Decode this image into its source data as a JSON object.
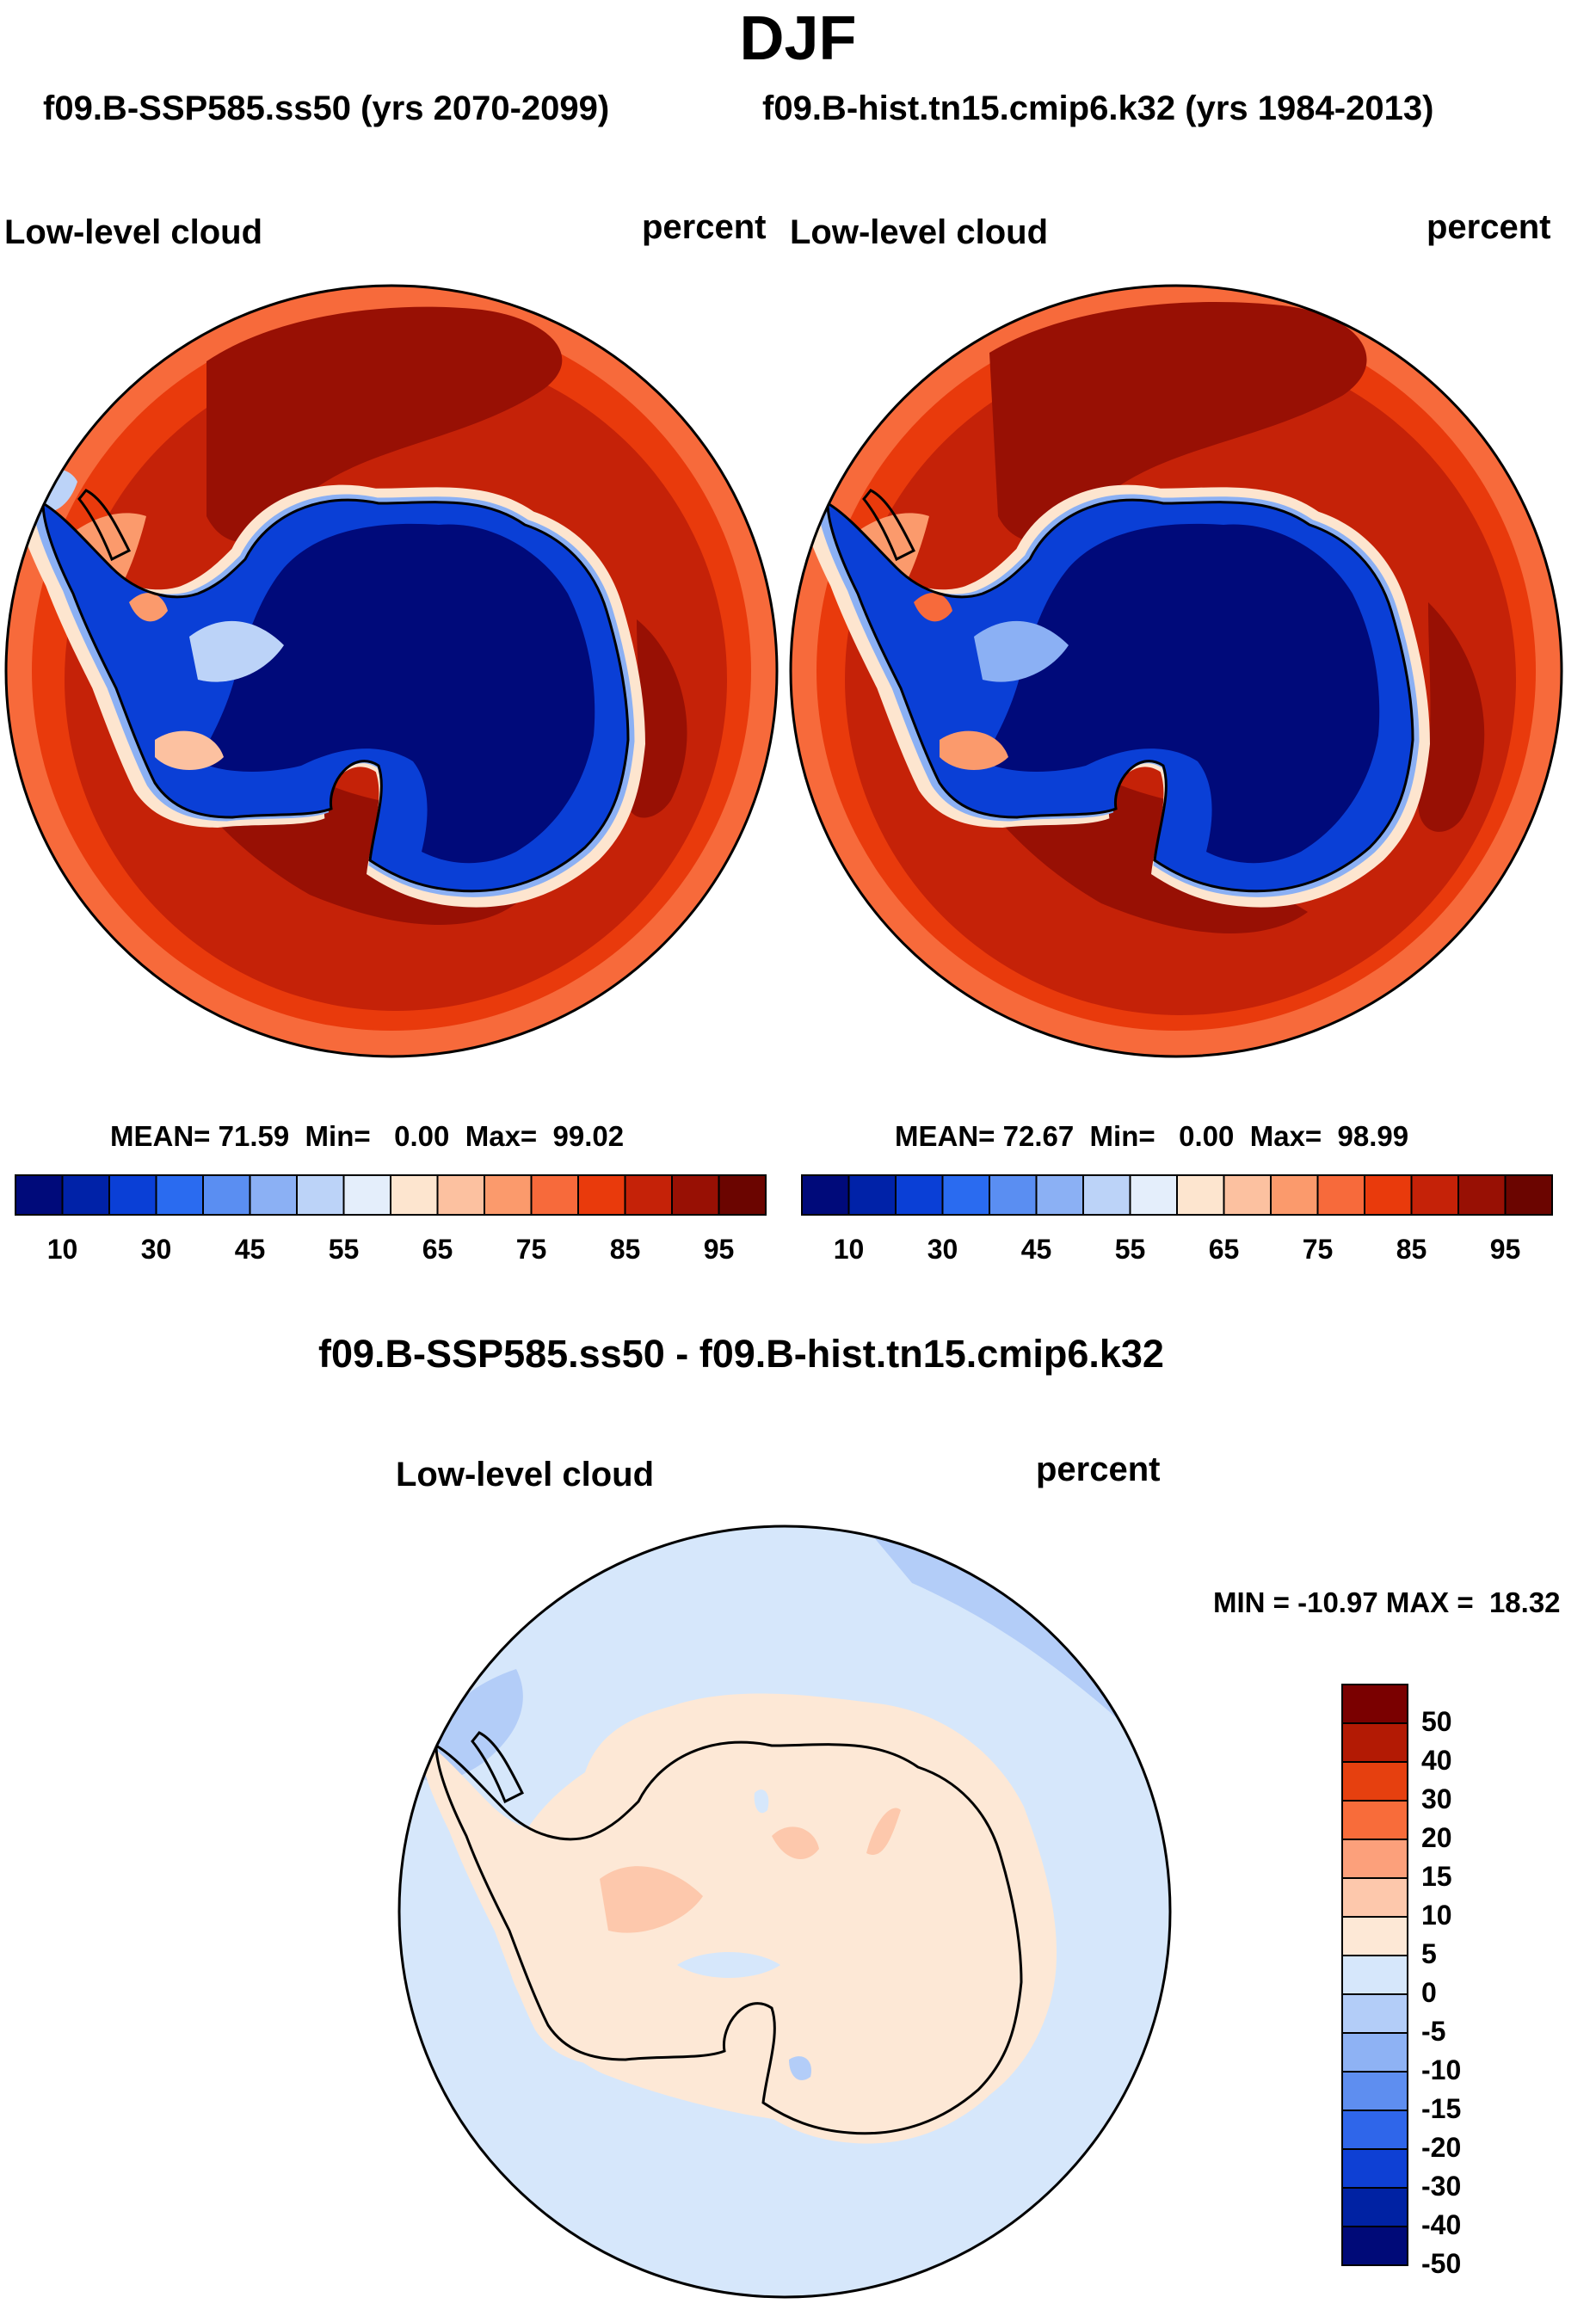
{
  "main_title": "DJF",
  "panel_a": {
    "case_title": "f09.B-SSP585.ss50 (yrs 2070-2099)",
    "variable": "Low-level cloud",
    "units": "percent",
    "stats": {
      "mean_label": "MEAN=",
      "mean": "71.59",
      "min_label": "Min=",
      "min": "0.00",
      "max_label": "Max=",
      "max": "99.02"
    }
  },
  "panel_b": {
    "case_title": "f09.B-hist.tn15.cmip6.k32 (yrs 1984-2013)",
    "variable": "Low-level cloud",
    "units": "percent",
    "stats": {
      "mean_label": "MEAN=",
      "mean": "72.67",
      "min_label": "Min=",
      "min": "0.00",
      "max_label": "Max=",
      "max": "98.99"
    }
  },
  "abs_colorbar": {
    "labels": [
      "10",
      "30",
      "45",
      "55",
      "65",
      "75",
      "85",
      "95"
    ],
    "colors": [
      "#000a7a",
      "#0022a8",
      "#0a3fd6",
      "#2a6bf0",
      "#5a8ef2",
      "#8bb0f4",
      "#bcd3f8",
      "#e4eefb",
      "#fde5cf",
      "#fcc1a0",
      "#fb9a6c",
      "#f76a3b",
      "#e93a0c",
      "#c52208",
      "#981004",
      "#6b0500"
    ]
  },
  "diff_panel": {
    "title": "f09.B-SSP585.ss50 - f09.B-hist.tn15.cmip6.k32",
    "variable": "Low-level cloud",
    "units": "percent",
    "minmax": "MIN = -10.97 MAX =  18.32"
  },
  "diff_colorbar": {
    "labels": [
      "50",
      "40",
      "30",
      "20",
      "15",
      "10",
      "5",
      "0",
      "-5",
      "-10",
      "-15",
      "-20",
      "-30",
      "-40",
      "-50"
    ],
    "colors": [
      "#7a0000",
      "#b31a04",
      "#e6400f",
      "#f86c3a",
      "#fca07b",
      "#fdc8ac",
      "#fde8d6",
      "#d6e7fb",
      "#b3cdf8",
      "#8eb2f4",
      "#5e8ef0",
      "#2f66ea",
      "#0e40d4",
      "#0022a3",
      "#000a78"
    ]
  },
  "colors": {
    "land_outline": "#000000"
  }
}
